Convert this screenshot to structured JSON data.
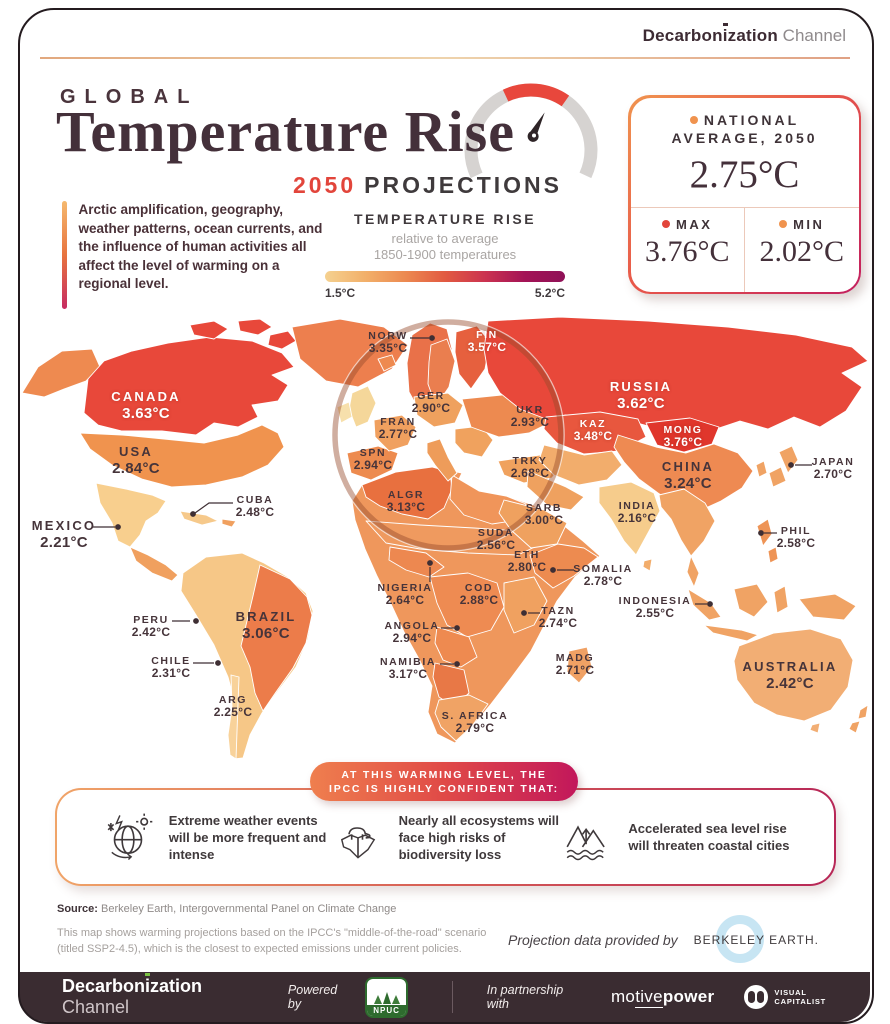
{
  "header": {
    "brand_pre": "Decarbon",
    "brand_i": "i",
    "brand_post": "zation",
    "brand_suffix": "Channel"
  },
  "title": {
    "kicker": "GLOBAL",
    "main": "Temperature Rise",
    "year": "2050",
    "suffix": "PROJECTIONS"
  },
  "intro": "Arctic amplification, geography, weather patterns, ocean currents, and the influence of human activities all affect the level of warming on a regional level.",
  "legend": {
    "heading": "TEMPERATURE RISE",
    "sub1": "relative to average",
    "sub2": "1850-1900 temperatures",
    "min": "1.5°C",
    "max": "5.2°C"
  },
  "stats": {
    "national_line1": "NATIONAL",
    "national_line2": "AVERAGE, 2050",
    "national_value": "2.75°C",
    "max_label": "MAX",
    "max_value": "3.76°C",
    "min_label": "MIN",
    "min_value": "2.02°C"
  },
  "map": {
    "labels": [
      {
        "id": "canada",
        "name": "CANADA",
        "temp": "3.63°C"
      },
      {
        "id": "usa",
        "name": "USA",
        "temp": "2.84°C"
      },
      {
        "id": "mexico",
        "name": "MEXICO",
        "temp": "2.21°C"
      },
      {
        "id": "cuba",
        "name": "CUBA",
        "temp": "2.48°C"
      },
      {
        "id": "peru",
        "name": "PERU",
        "temp": "2.42°C"
      },
      {
        "id": "brazil",
        "name": "BRAZIL",
        "temp": "3.06°C"
      },
      {
        "id": "chile",
        "name": "CHILE",
        "temp": "2.31°C"
      },
      {
        "id": "arg",
        "name": "ARG",
        "temp": "2.25°C"
      },
      {
        "id": "norw",
        "name": "NORW",
        "temp": "3.35°C"
      },
      {
        "id": "fin",
        "name": "FIN",
        "temp": "3.57°C"
      },
      {
        "id": "ger",
        "name": "GER",
        "temp": "2.90°C"
      },
      {
        "id": "ukr",
        "name": "UKR",
        "temp": "2.93°C"
      },
      {
        "id": "fran",
        "name": "FRAN",
        "temp": "2.77°C"
      },
      {
        "id": "spn",
        "name": "SPN",
        "temp": "2.94°C"
      },
      {
        "id": "algr",
        "name": "ALGR",
        "temp": "3.13°C"
      },
      {
        "id": "kaz",
        "name": "KAZ",
        "temp": "3.48°C"
      },
      {
        "id": "trky",
        "name": "TRKY",
        "temp": "2.68°C"
      },
      {
        "id": "sarb",
        "name": "SARB",
        "temp": "3.00°C"
      },
      {
        "id": "russia",
        "name": "RUSSIA",
        "temp": "3.62°C"
      },
      {
        "id": "mong",
        "name": "MONG",
        "temp": "3.76°C"
      },
      {
        "id": "china",
        "name": "CHINA",
        "temp": "3.24°C"
      },
      {
        "id": "japan",
        "name": "JAPAN",
        "temp": "2.70°C"
      },
      {
        "id": "india",
        "name": "INDIA",
        "temp": "2.16°C"
      },
      {
        "id": "phil",
        "name": "PHIL",
        "temp": "2.58°C"
      },
      {
        "id": "suda",
        "name": "SUDA",
        "temp": "2.56°C"
      },
      {
        "id": "eth",
        "name": "ETH",
        "temp": "2.80°C"
      },
      {
        "id": "somalia",
        "name": "SOMALIA",
        "temp": "2.78°C"
      },
      {
        "id": "nigeria",
        "name": "NIGERIA",
        "temp": "2.64°C"
      },
      {
        "id": "cod",
        "name": "COD",
        "temp": "2.88°C"
      },
      {
        "id": "angola",
        "name": "ANGOLA",
        "temp": "2.94°C"
      },
      {
        "id": "tazn",
        "name": "TAZN",
        "temp": "2.74°C"
      },
      {
        "id": "namibia",
        "name": "NAMIBIA",
        "temp": "3.17°C"
      },
      {
        "id": "madg",
        "name": "MADG",
        "temp": "2.71°C"
      },
      {
        "id": "safrica",
        "name": "S. AFRICA",
        "temp": "2.79°C"
      },
      {
        "id": "indonesia",
        "name": "INDONESIA",
        "temp": "2.55°C"
      },
      {
        "id": "australia",
        "name": "AUSTRALIA",
        "temp": "2.42°C"
      }
    ]
  },
  "banner": {
    "line1": "AT THIS WARMING LEVEL, THE",
    "line2": "IPCC IS HIGHLY CONFIDENT THAT:"
  },
  "impacts": [
    {
      "icon": "extreme-weather-icon",
      "text": "Extreme weather events will be more frequent and intense"
    },
    {
      "icon": "biodiversity-icon",
      "text": "Nearly all ecosystems will face high risks of biodiversity loss"
    },
    {
      "icon": "sea-level-icon",
      "text": "Accelerated sea level rise will threaten coastal cities"
    }
  ],
  "source": {
    "label": "Source:",
    "text": " Berkeley Earth, Intergovernmental Panel on Climate Change",
    "note": "This map shows warming projections based on the IPCC's \"middle-of-the-road\" scenario (titled SSP2-4.5), which is the closest to expected emissions under current policies.",
    "provided_by": "Projection data provided by",
    "provider": "BERKELEY EARTH."
  },
  "footer": {
    "brand_pre": "Decarbon",
    "brand_i": "i",
    "brand_post": "zation",
    "brand_suffix": "Channel",
    "powered_by": "Powered by",
    "npuc": "NPUC",
    "partnership": "In partnership with",
    "motive_a": "mo",
    "motive_b": "tive",
    "motive_c": "power",
    "vc_line1": "VISUAL",
    "vc_line2": "CAPITALIST"
  },
  "colors": {
    "accent_red": "#e2453b",
    "title": "#44303a",
    "map_hot": "#e8483a",
    "map_cool": "#f8cf8e",
    "legend_start": "#f5d190",
    "legend_end": "#8f1157"
  }
}
